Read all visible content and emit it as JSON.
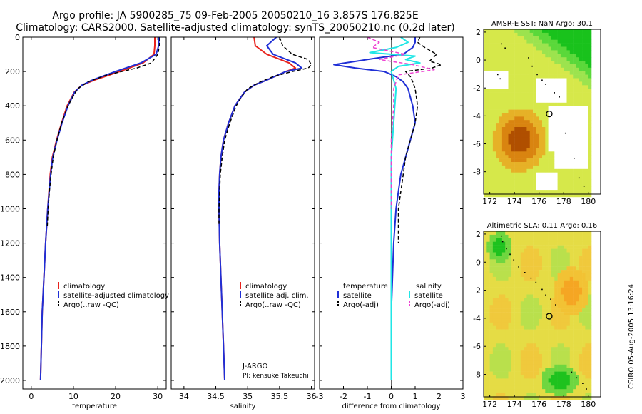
{
  "header": {
    "line1": "Argo profile: JA 5900285_75 09-Feb-2005 20050210_16 3.857S 176.825E",
    "line2": "Climatology: CARS2000. Satellite-adjusted climatology: synTS_20050210.nc (0.2d later)"
  },
  "stamp": "CSIRO 05-Aug-2005 13:16:24",
  "colors": {
    "red": "#e8221c",
    "blue": "#1f2fd6",
    "black": "#000000",
    "cyan": "#21e6e6",
    "magenta": "#ee3fd2"
  },
  "chart_data": [
    {
      "id": "temperature",
      "type": "line",
      "xlabel": "temperature",
      "ylabel": "",
      "xlim": [
        -2,
        32
      ],
      "ylim": [
        2050,
        0
      ],
      "xticks": [
        0,
        10,
        20,
        30
      ],
      "yticks": [
        0,
        200,
        400,
        600,
        800,
        1000,
        1200,
        1400,
        1600,
        1800,
        2000
      ],
      "show_yticklabels": true,
      "legend": [
        {
          "label": "climatology",
          "color": "red"
        },
        {
          "label": "satellite-adjusted climatology",
          "color": "blue"
        },
        {
          "label": "Argo(..raw -QC)",
          "color": "black"
        }
      ],
      "legend_pos": "lower-center",
      "series": [
        {
          "name": "climatology",
          "color": "red",
          "width": 2,
          "dash": "",
          "depth": [
            0,
            50,
            100,
            150,
            200,
            250,
            280,
            320,
            400,
            500,
            600,
            700,
            800,
            1000,
            1200,
            1400,
            1600,
            1800,
            2000
          ],
          "values": [
            29.3,
            29.3,
            29.1,
            26.5,
            21.0,
            15.0,
            12.0,
            10.2,
            8.5,
            7.2,
            6.0,
            5.0,
            4.5,
            3.9,
            3.4,
            3.0,
            2.6,
            2.4,
            2.2
          ]
        },
        {
          "name": "satellite adjusted",
          "color": "blue",
          "width": 2,
          "dash": "",
          "depth": [
            0,
            50,
            100,
            150,
            200,
            250,
            280,
            320,
            400,
            500,
            600,
            700,
            800,
            1000,
            1200,
            1400,
            1600,
            1800,
            2000
          ],
          "values": [
            30.3,
            30.2,
            29.6,
            26.0,
            20.0,
            14.5,
            12.0,
            10.3,
            8.7,
            7.3,
            6.1,
            5.1,
            4.6,
            3.9,
            3.4,
            3.0,
            2.6,
            2.4,
            2.2
          ]
        },
        {
          "name": "Argo raw",
          "color": "black",
          "width": 1.5,
          "dash": "5,3",
          "depth": [
            0,
            50,
            100,
            150,
            180,
            220,
            260,
            300,
            350,
            400,
            500,
            600,
            700,
            800,
            900,
            1000,
            1100
          ],
          "values": [
            30.5,
            30.4,
            30.0,
            28.5,
            25.0,
            18.0,
            13.5,
            11.0,
            9.8,
            8.7,
            7.2,
            6.1,
            5.2,
            4.7,
            4.3,
            4.0,
            3.8
          ]
        }
      ]
    },
    {
      "id": "salinity",
      "type": "line",
      "xlabel": "salinity",
      "ylabel": "",
      "xlim": [
        33.8,
        36.05
      ],
      "ylim": [
        2050,
        0
      ],
      "xticks": [
        34,
        34.5,
        35,
        35.5,
        36
      ],
      "yticks": [
        0,
        200,
        400,
        600,
        800,
        1000,
        1200,
        1400,
        1600,
        1800,
        2000
      ],
      "show_yticklabels": false,
      "legend": [
        {
          "label": "climatology",
          "color": "red"
        },
        {
          "label": "satellite adj. clim.",
          "color": "blue"
        },
        {
          "label": "Argo(..raw -QC)",
          "color": "black"
        }
      ],
      "legend_pos": "lower-right",
      "annotation": [
        "J-ARGO",
        "PI: kensuke Takeuchi"
      ],
      "series": [
        {
          "name": "climatology",
          "color": "red",
          "width": 2,
          "dash": "",
          "depth": [
            0,
            50,
            100,
            150,
            180,
            200,
            250,
            280,
            320,
            400,
            500,
            600,
            700,
            800,
            900,
            1000,
            1200,
            1400,
            1600,
            1800,
            2000
          ],
          "values": [
            35.1,
            35.12,
            35.3,
            35.65,
            35.75,
            35.6,
            35.3,
            35.1,
            34.95,
            34.8,
            34.7,
            34.62,
            34.58,
            34.56,
            34.55,
            34.55,
            34.56,
            34.58,
            34.6,
            34.62,
            34.64
          ]
        },
        {
          "name": "satellite adjusted",
          "color": "blue",
          "width": 2,
          "dash": "",
          "depth": [
            0,
            50,
            100,
            150,
            180,
            200,
            250,
            280,
            320,
            400,
            500,
            600,
            700,
            800,
            900,
            1000,
            1200,
            1400,
            1600,
            1800,
            2000
          ],
          "values": [
            35.45,
            35.3,
            35.4,
            35.75,
            35.85,
            35.6,
            35.3,
            35.1,
            34.95,
            34.8,
            34.7,
            34.62,
            34.58,
            34.56,
            34.55,
            34.55,
            34.56,
            34.58,
            34.6,
            34.62,
            34.64
          ]
        },
        {
          "name": "Argo raw",
          "color": "black",
          "width": 1.5,
          "dash": "5,3",
          "depth": [
            0,
            50,
            100,
            130,
            160,
            180,
            200,
            230,
            260,
            300,
            350,
            400,
            500,
            600,
            700,
            800,
            900,
            1000,
            1100
          ],
          "values": [
            35.5,
            35.55,
            35.7,
            35.95,
            36.0,
            35.95,
            35.7,
            35.4,
            35.2,
            35.0,
            34.9,
            34.82,
            34.72,
            34.64,
            34.6,
            34.57,
            34.56,
            34.55,
            34.55
          ]
        }
      ]
    },
    {
      "id": "difference",
      "type": "line",
      "xlabel": "difference from climatology",
      "ylabel": "",
      "xlim": [
        -3,
        3
      ],
      "ylim": [
        2050,
        0
      ],
      "xticks": [
        -3,
        -2,
        -1,
        0,
        1,
        2,
        3
      ],
      "yticks": [
        0,
        200,
        400,
        600,
        800,
        1000,
        1200,
        1400,
        1600,
        1800,
        2000
      ],
      "show_yticklabels": false,
      "legend_pos": "lower-center",
      "legend_left": {
        "title": "temperature",
        "items": [
          {
            "label": "satellite",
            "color": "blue"
          },
          {
            "label": "Argo(-adj)",
            "color": "black"
          }
        ]
      },
      "legend_right": {
        "title": "salinity",
        "items": [
          {
            "label": "satellite",
            "color": "cyan"
          },
          {
            "label": "Argo(-adj)",
            "color": "magenta"
          }
        ]
      },
      "series": [
        {
          "name": "temperature satellite",
          "color": "blue",
          "width": 2,
          "dash": "",
          "depth": [
            0,
            30,
            60,
            100,
            130,
            160,
            180,
            200,
            230,
            260,
            300,
            400,
            500,
            600,
            700,
            800,
            900,
            1000,
            1200,
            1400,
            1600,
            1800,
            2000
          ],
          "values": [
            1.0,
            1.0,
            0.9,
            0.5,
            -1.0,
            -2.4,
            -1.5,
            -0.3,
            0.2,
            0.5,
            0.7,
            0.9,
            1.0,
            0.8,
            0.6,
            0.4,
            0.3,
            0.2,
            0.1,
            0.05,
            0.0,
            0.0,
            0.0
          ]
        },
        {
          "name": "temperature Argo",
          "color": "black",
          "width": 1.5,
          "dash": "5,3",
          "depth": [
            0,
            30,
            60,
            100,
            140,
            160,
            180,
            200,
            230,
            260,
            300,
            400,
            500,
            600,
            700,
            800,
            900,
            1000,
            1100,
            1200
          ],
          "values": [
            1.2,
            1.1,
            1.4,
            1.9,
            1.6,
            2.1,
            1.7,
            0.6,
            0.8,
            0.9,
            1.0,
            1.1,
            1.0,
            0.8,
            0.6,
            0.5,
            0.4,
            0.3,
            0.3,
            0.3
          ]
        },
        {
          "name": "salinity satellite",
          "color": "cyan",
          "width": 2,
          "dash": "",
          "depth": [
            0,
            30,
            60,
            90,
            110,
            130,
            150,
            170,
            200,
            250,
            300,
            400,
            500,
            600,
            700,
            800,
            1000,
            1200,
            1400,
            1600,
            1800,
            2000
          ],
          "values": [
            0.4,
            0.7,
            0.2,
            -0.9,
            1.0,
            0.6,
            1.2,
            0.3,
            0.0,
            0.1,
            0.2,
            0.15,
            0.1,
            0.05,
            0.0,
            0.0,
            0.0,
            0.0,
            0.0,
            0.0,
            0.0,
            0.0
          ]
        },
        {
          "name": "salinity Argo",
          "color": "magenta",
          "width": 1.5,
          "dash": "5,3",
          "depth": [
            0,
            30,
            60,
            100,
            130,
            160,
            190,
            220,
            260,
            300,
            400,
            500,
            600,
            800,
            1000
          ],
          "values": [
            -1.0,
            -0.5,
            -0.8,
            0.6,
            -0.5,
            0.9,
            1.8,
            0.3,
            0.2,
            0.1,
            0.1,
            0.05,
            0.0,
            0.0,
            0.0
          ]
        }
      ]
    }
  ],
  "maps": [
    {
      "id": "sst-map",
      "title": "AMSR-E SST: NaN Argo: 30.1",
      "xlim": [
        171.5,
        181
      ],
      "ylim": [
        -9.6,
        2.2
      ],
      "xticks": [
        172,
        174,
        176,
        178,
        180
      ],
      "yticks": [
        2,
        0,
        -2,
        -4,
        -6,
        -8
      ],
      "marker": {
        "lon": 176.825,
        "lat": -3.857
      }
    },
    {
      "id": "sla-map",
      "title": "Altimetric SLA: 0.11 Argo: 0.16",
      "xlim": [
        171.5,
        181
      ],
      "ylim": [
        -9.6,
        2.2
      ],
      "xticks": [
        172,
        174,
        176,
        178,
        180
      ],
      "yticks": [
        2,
        0,
        -2,
        -4,
        -6,
        -8
      ],
      "marker": {
        "lon": 176.825,
        "lat": -3.857
      }
    }
  ]
}
